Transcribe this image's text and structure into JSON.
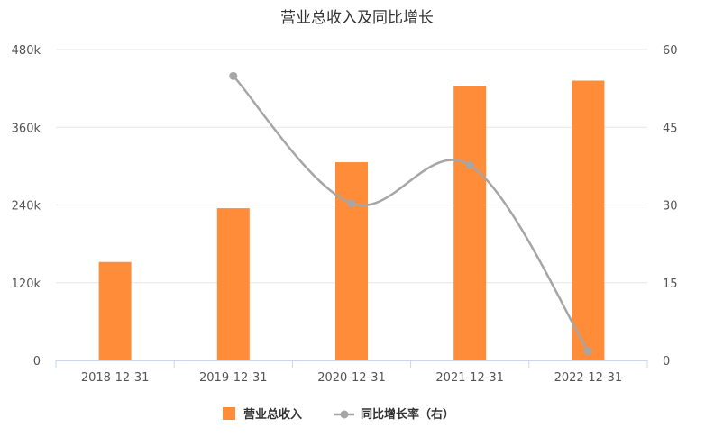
{
  "chart_data": {
    "type": "bar",
    "title": "营业总收入及同比增长",
    "categories": [
      "2018-12-31",
      "2019-12-31",
      "2020-12-31",
      "2021-12-31",
      "2022-12-31"
    ],
    "series": [
      {
        "name": "营业总收入",
        "type": "bar",
        "axis": "left",
        "color": "#ff8c38",
        "values": [
          152000,
          235000,
          306000,
          424000,
          432000
        ]
      },
      {
        "name": "同比增长率（右）",
        "type": "line",
        "axis": "right",
        "color": "#a6a6a6",
        "values": [
          null,
          54.9,
          30.3,
          37.7,
          1.8
        ]
      }
    ],
    "y_left": {
      "ticks": [
        "0",
        "120k",
        "240k",
        "360k",
        "480k"
      ],
      "ylim": [
        0,
        480000
      ]
    },
    "y_right": {
      "ticks": [
        "0",
        "15",
        "30",
        "45",
        "60"
      ],
      "ylim": [
        0,
        60
      ]
    },
    "grid": true,
    "legend_position": "bottom"
  }
}
